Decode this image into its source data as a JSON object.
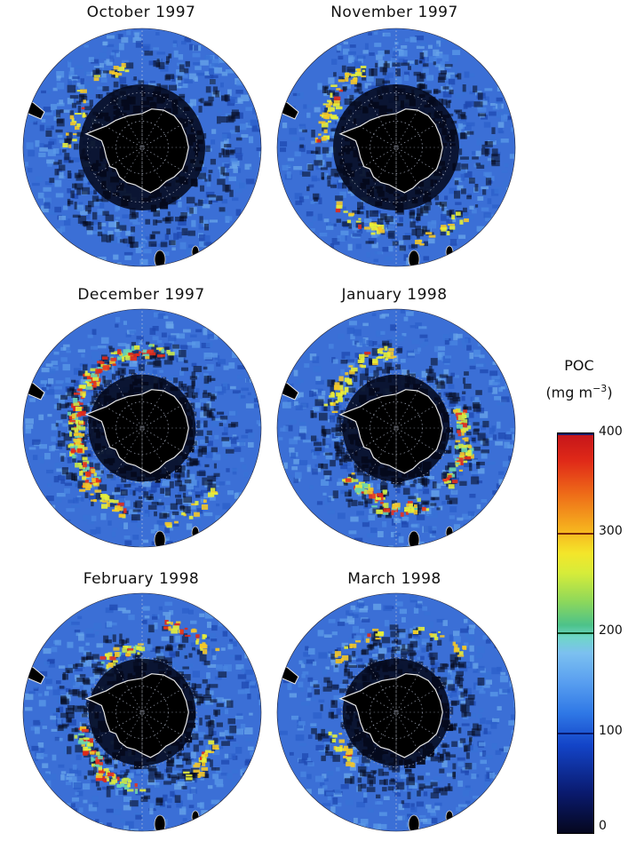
{
  "panels": [
    {
      "title": "October 1997"
    },
    {
      "title": "November 1997"
    },
    {
      "title": "December 1997"
    },
    {
      "title": "January 1998"
    },
    {
      "title": "February 1998"
    },
    {
      "title": "March 1998"
    }
  ],
  "colorbar": {
    "title_line1": "POC",
    "title_line2": "(mg m",
    "title_sup": "−3",
    "title_close": ")",
    "ticks": [
      "400",
      "300",
      "200",
      "100",
      "0"
    ],
    "range": [
      0,
      400
    ],
    "line_colors": [
      "#1a1a66",
      "#7a2a08",
      "#0d4a22",
      "#081a70"
    ]
  },
  "colors": {
    "ocean_base": "#3b6fd6",
    "low_poc": "#05091c",
    "land": "#000000",
    "coastline": "#e8e8e8"
  }
}
